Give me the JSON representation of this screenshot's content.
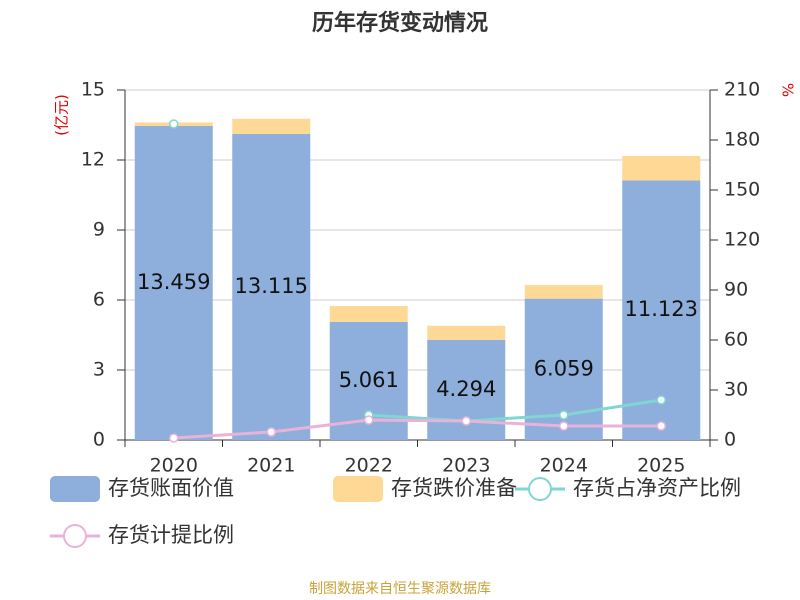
{
  "chart_data": {
    "type": "bar",
    "title": "历年存货变动情况",
    "ylabel": "(亿元)",
    "y2label": "%",
    "source": "制图数据来自恒生聚源数据库",
    "categories": [
      "2020",
      "2021",
      "2022",
      "2023",
      "2024",
      "2025"
    ],
    "stacked": true,
    "series": [
      {
        "name": "存货账面价值",
        "type": "bar",
        "color": "#8eaedb",
        "values": [
          13.459,
          13.115,
          5.061,
          4.294,
          6.059,
          11.123
        ]
      },
      {
        "name": "存货跌价准备",
        "type": "bar",
        "color": "#fdd995",
        "values": [
          0.15,
          0.65,
          0.68,
          0.6,
          0.58,
          1.05
        ]
      },
      {
        "name": "存货占净资产比例",
        "type": "line",
        "axis": "y2",
        "color": "#7fd6d3",
        "values": [
          189.6,
          null,
          15,
          11.4,
          15,
          24
        ]
      },
      {
        "name": "存货计提比例",
        "type": "line",
        "axis": "y2",
        "color": "#e8b3d8",
        "values": [
          1.2,
          4.8,
          12,
          11.4,
          8.4,
          8.4
        ]
      }
    ],
    "ylim": [
      0,
      15
    ],
    "yticks": [
      0,
      3,
      6,
      9,
      12,
      15
    ],
    "y2lim": [
      0,
      210
    ],
    "y2ticks": [
      0,
      30,
      60,
      90,
      120,
      150,
      180,
      210
    ],
    "grid": true
  }
}
